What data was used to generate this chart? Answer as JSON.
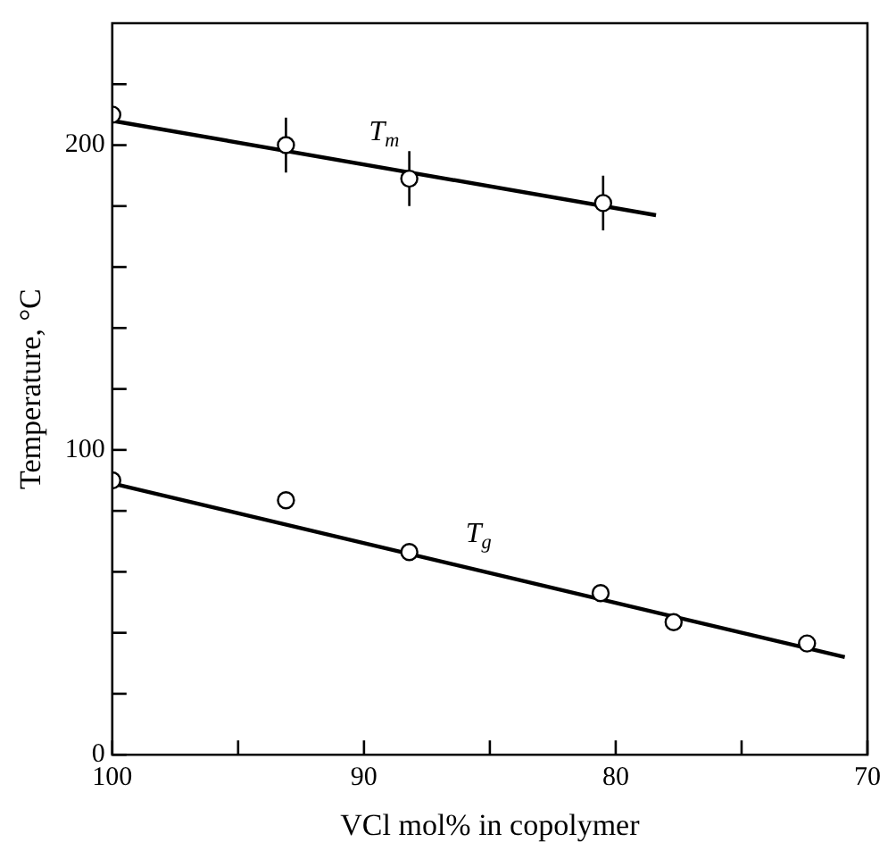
{
  "chart_data": {
    "type": "scatter",
    "xlabel": "VCl mol% in copolymer",
    "ylabel": "Temperature, °C",
    "xlim": [
      100,
      70
    ],
    "xticks": [
      100,
      {
        "value": 95,
        "label": null
      },
      90,
      {
        "value": 85,
        "label": null
      },
      80,
      {
        "value": 75,
        "label": null
      },
      70
    ],
    "ylim": [
      0,
      240
    ],
    "yticks": [
      0,
      {
        "value": 20,
        "label": null
      },
      {
        "value": 40,
        "label": null
      },
      {
        "value": 60,
        "label": null
      },
      {
        "value": 80,
        "label": null
      },
      100,
      {
        "value": 120,
        "label": null
      },
      {
        "value": 140,
        "label": null
      },
      {
        "value": 160,
        "label": null
      },
      {
        "value": 180,
        "label": null
      },
      200,
      {
        "value": 220,
        "label": null
      }
    ],
    "grid": false,
    "legend": false,
    "marker": "circle",
    "series": [
      {
        "color": "#000000",
        "x": [
          100,
          93.1,
          88.2,
          80.5
        ],
        "values": [
          210,
          200,
          189,
          181
        ],
        "errors": [
          null,
          9,
          9,
          9
        ]
      },
      {
        "type": "line",
        "name": "T$_{m}$",
        "color": "#000000",
        "marker": "none",
        "x": [
          100,
          78.4
        ],
        "values": [
          208,
          177
        ]
      },
      {
        "color": "#000000",
        "x": [
          100,
          93.1,
          88.2,
          80.6,
          77.7,
          72.4
        ],
        "values": [
          90,
          83.5,
          66.5,
          53,
          43.5,
          36.5
        ]
      },
      {
        "type": "line",
        "name": "T$_{g}$",
        "color": "#000000",
        "marker": "none",
        "x": [
          100,
          70.9
        ],
        "values": [
          89,
          32
        ]
      }
    ]
  }
}
